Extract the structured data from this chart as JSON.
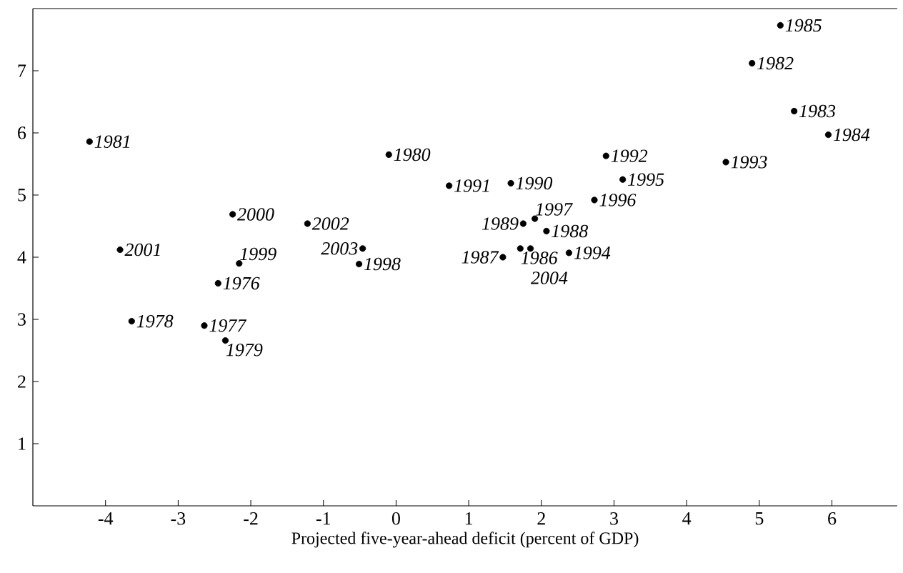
{
  "chart_data": {
    "type": "scatter",
    "xlabel": "Projected five-year-ahead deficit (percent of GDP)",
    "x": [
      -2.45,
      -2.64,
      -3.64,
      -2.35,
      -0.1,
      -4.22,
      4.9,
      5.48,
      5.95,
      5.29,
      1.71,
      1.47,
      2.07,
      1.75,
      1.58,
      0.73,
      2.89,
      4.54,
      2.38,
      3.12,
      2.73,
      1.91,
      -0.51,
      -2.16,
      -2.25,
      -3.8,
      -1.22,
      -0.46,
      1.85
    ],
    "values": [
      3.58,
      2.9,
      2.97,
      2.66,
      5.65,
      5.86,
      7.12,
      6.35,
      5.97,
      7.73,
      4.14,
      4.0,
      4.42,
      4.54,
      5.19,
      5.15,
      5.63,
      5.53,
      4.07,
      5.25,
      4.92,
      4.62,
      3.89,
      3.9,
      4.69,
      4.12,
      4.54,
      4.14,
      4.14
    ],
    "annotations": [
      {
        "text": "1976",
        "x": -2.45,
        "y": 3.58
      },
      {
        "text": "1977",
        "x": -2.64,
        "y": 2.9
      },
      {
        "text": "1978",
        "x": -3.64,
        "y": 2.97
      },
      {
        "text": "1979",
        "x": -2.35,
        "y": 2.66
      },
      {
        "text": "1980",
        "x": -0.1,
        "y": 5.65
      },
      {
        "text": "1981",
        "x": -4.22,
        "y": 5.86
      },
      {
        "text": "1982",
        "x": 4.9,
        "y": 7.12
      },
      {
        "text": "1983",
        "x": 5.48,
        "y": 6.35
      },
      {
        "text": "1984",
        "x": 5.95,
        "y": 5.97
      },
      {
        "text": "1985",
        "x": 5.29,
        "y": 7.73
      },
      {
        "text": "1986",
        "x": 1.71,
        "y": 4.14
      },
      {
        "text": "1987",
        "x": 1.47,
        "y": 4.0
      },
      {
        "text": "1988",
        "x": 2.07,
        "y": 4.42
      },
      {
        "text": "1989",
        "x": 1.75,
        "y": 4.54
      },
      {
        "text": "1990",
        "x": 1.58,
        "y": 5.19
      },
      {
        "text": "1991",
        "x": 0.73,
        "y": 5.15
      },
      {
        "text": "1992",
        "x": 2.89,
        "y": 5.63
      },
      {
        "text": "1993",
        "x": 4.54,
        "y": 5.53
      },
      {
        "text": "1994",
        "x": 2.38,
        "y": 4.07
      },
      {
        "text": "1995",
        "x": 3.12,
        "y": 5.25
      },
      {
        "text": "1996",
        "x": 2.73,
        "y": 4.92
      },
      {
        "text": "1997",
        "x": 1.91,
        "y": 4.62
      },
      {
        "text": "1998",
        "x": -0.51,
        "y": 3.89
      },
      {
        "text": "1999",
        "x": -2.16,
        "y": 3.9
      },
      {
        "text": "2000",
        "x": -2.25,
        "y": 4.69
      },
      {
        "text": "2001",
        "x": -3.8,
        "y": 4.12
      },
      {
        "text": "2002",
        "x": -1.22,
        "y": 4.54
      },
      {
        "text": "2003",
        "x": -0.46,
        "y": 4.14
      },
      {
        "text": "2004",
        "x": 1.85,
        "y": 4.14
      }
    ],
    "color": "#000000",
    "marker": "circle",
    "xlim": [
      -5,
      6.9
    ],
    "ylim": [
      0,
      8
    ],
    "xticks": [
      -4,
      -3,
      -2,
      -1,
      0,
      1,
      2,
      3,
      4,
      5,
      6
    ],
    "yticks": [
      1,
      2,
      3,
      4,
      5,
      6,
      7
    ]
  }
}
